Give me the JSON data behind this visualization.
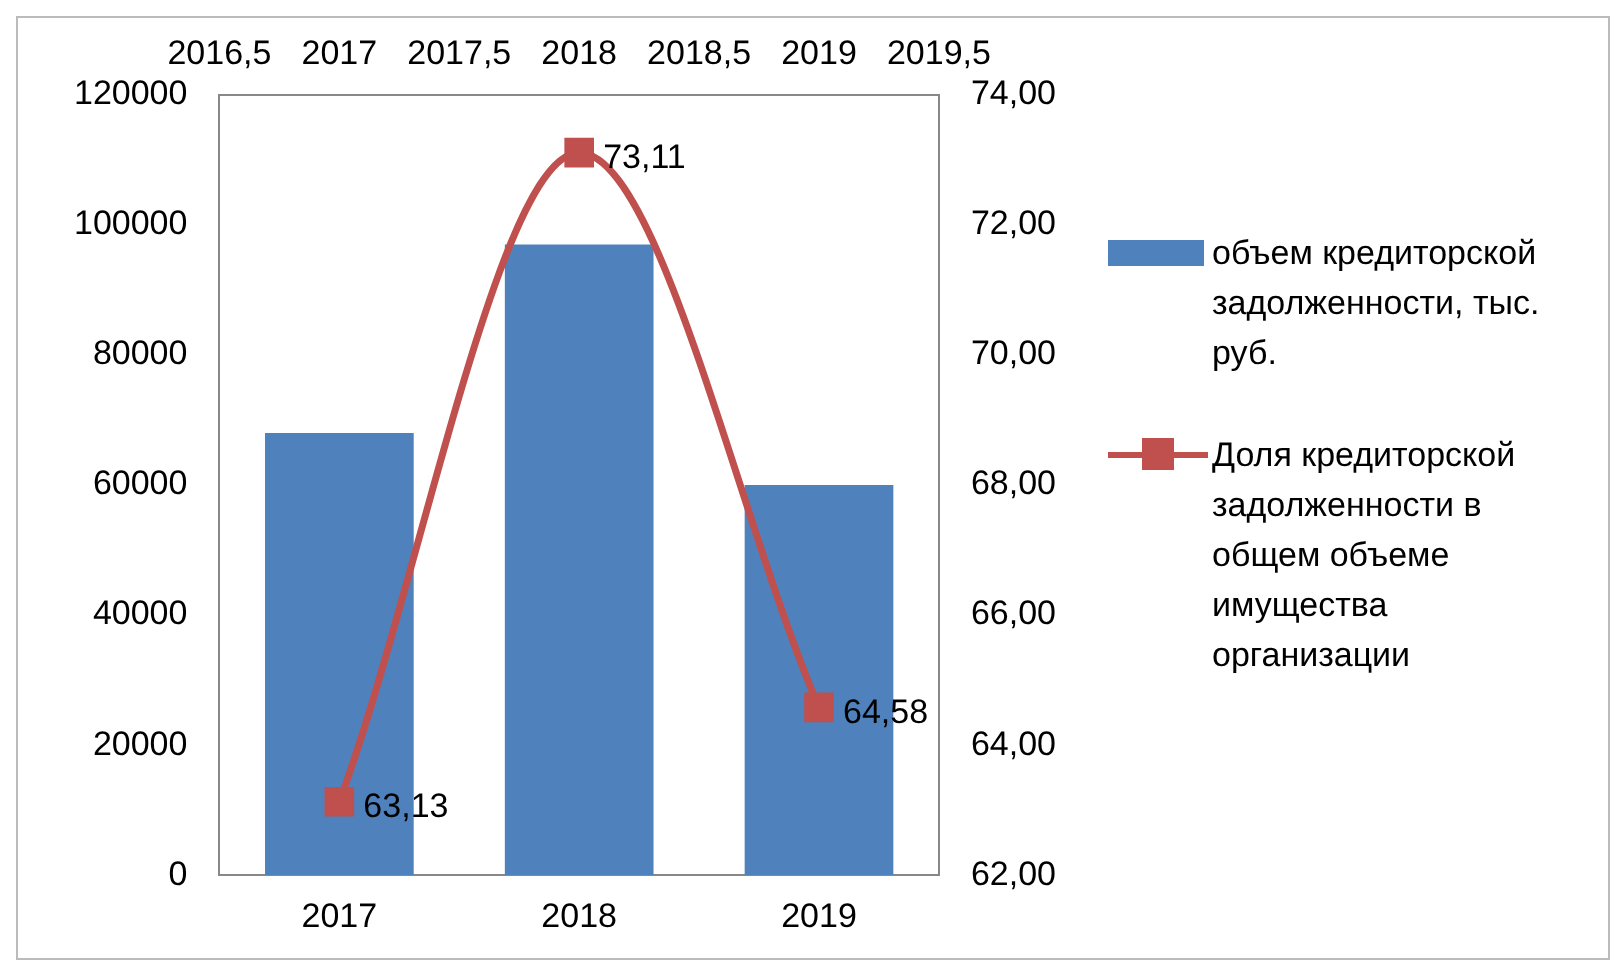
{
  "chart_data": {
    "type": "bar",
    "categories": [
      "2017",
      "2018",
      "2019"
    ],
    "series": [
      {
        "name": "объем кредиторской задолженности, тыс. руб.",
        "color": "#4f81bd",
        "values": [
          68000,
          97000,
          60000
        ]
      },
      {
        "name": "Доля кредиторской задолженности в общем объеме имущества организации",
        "type": "line",
        "axis": "y2",
        "color": "#c0504d",
        "values": [
          63.13,
          73.11,
          64.58
        ],
        "value_labels": [
          "63,13",
          "73,11",
          "64,58"
        ]
      }
    ],
    "ylim": [
      0,
      120000
    ],
    "yticks": [
      0,
      20000,
      40000,
      60000,
      80000,
      100000,
      120000
    ],
    "y2lim": [
      62,
      74
    ],
    "y2ticks": [
      {
        "value": 62,
        "label": "62,00"
      },
      {
        "value": 64,
        "label": "64,00"
      },
      {
        "value": 66,
        "label": "66,00"
      },
      {
        "value": 68,
        "label": "68,00"
      },
      {
        "value": 70,
        "label": "70,00"
      },
      {
        "value": 72,
        "label": "72,00"
      },
      {
        "value": 74,
        "label": "74,00"
      }
    ],
    "x2lim": [
      2016.5,
      2019.5
    ],
    "x2ticks": [
      {
        "value": 2016.5,
        "label": "2016,5"
      },
      2017,
      {
        "value": 2017.5,
        "label": "2017,5"
      },
      2018,
      {
        "value": 2018.5,
        "label": "2018,5"
      },
      2019,
      {
        "value": 2019.5,
        "label": "2019,5"
      }
    ],
    "legend": "right",
    "grid": false,
    "marker": "square",
    "line_style": "solid"
  }
}
